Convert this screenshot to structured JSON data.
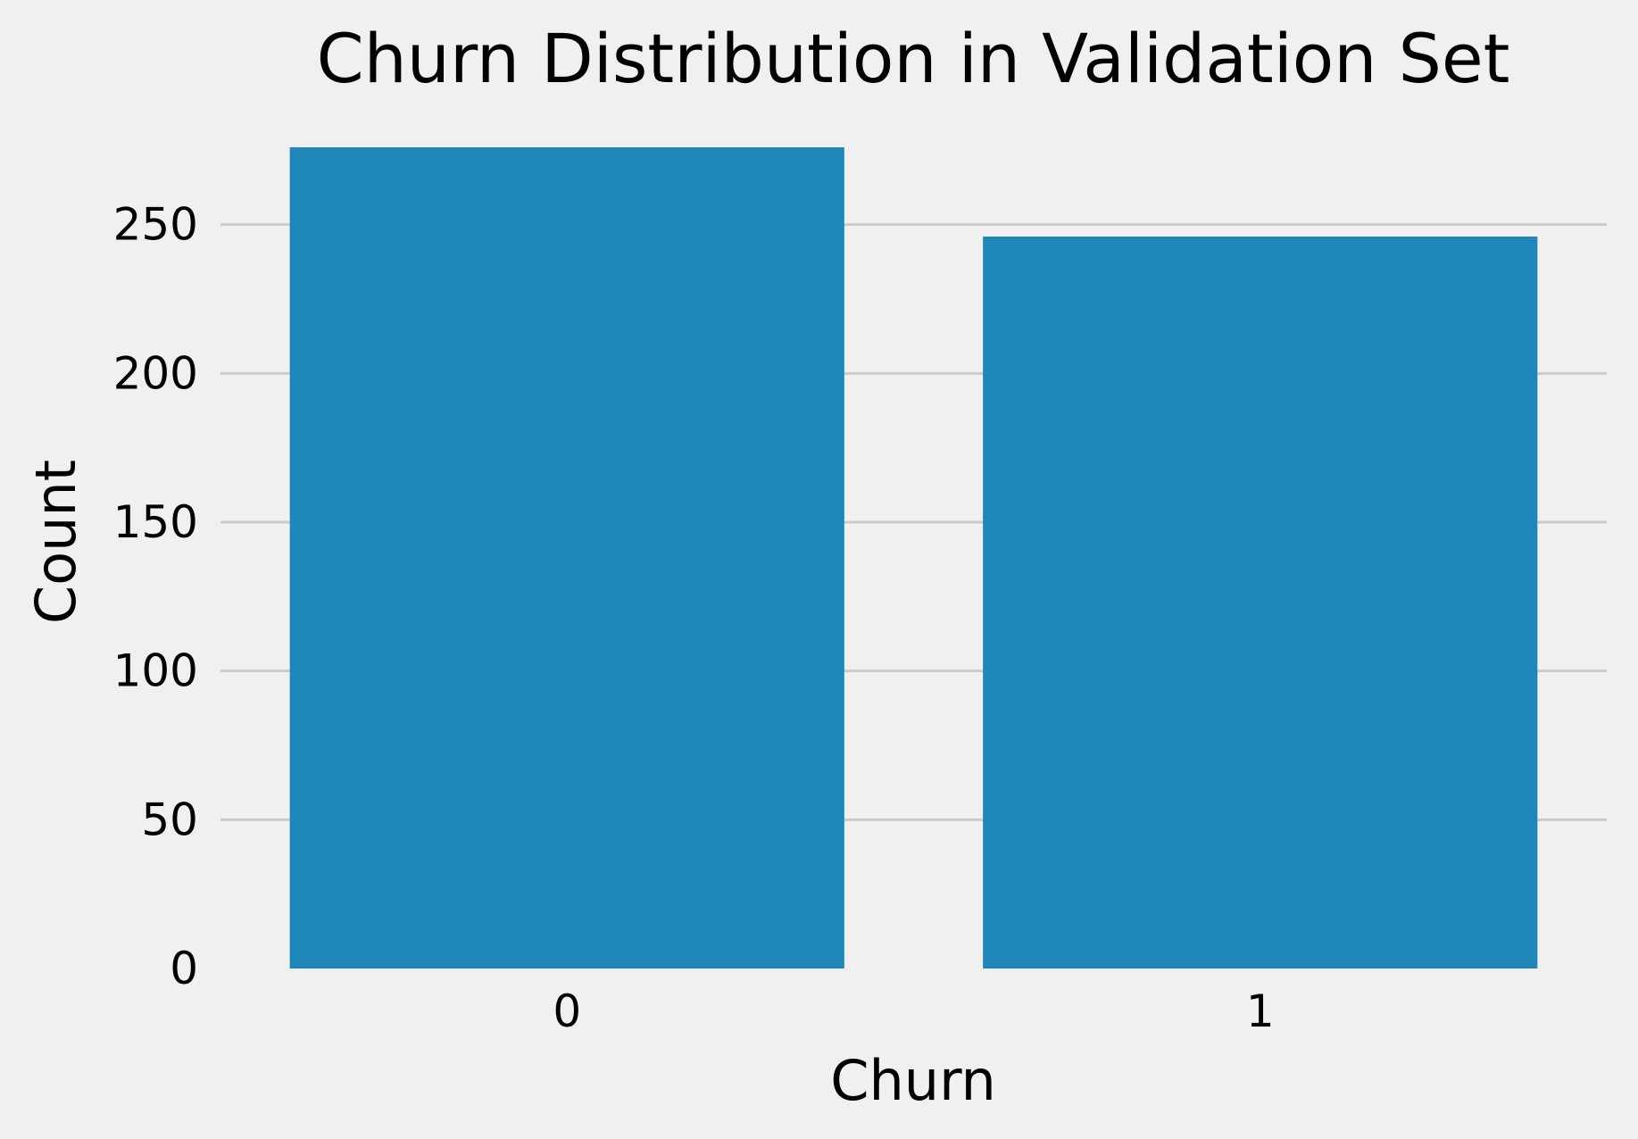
{
  "chart_data": {
    "type": "bar",
    "title": "Churn Distribution in Validation Set",
    "xlabel": "Churn",
    "ylabel": "Count",
    "categories": [
      "0",
      "1"
    ],
    "values": [
      276,
      246
    ],
    "ylim": [
      0,
      276
    ],
    "yticks": [
      0,
      50,
      100,
      150,
      200,
      250
    ],
    "grid": "horizontal",
    "legend": "none",
    "colors": {
      "bar": "#1f86b9",
      "background": "#f0f0f0",
      "grid": "#cbcbcb",
      "text": "#000000"
    }
  }
}
